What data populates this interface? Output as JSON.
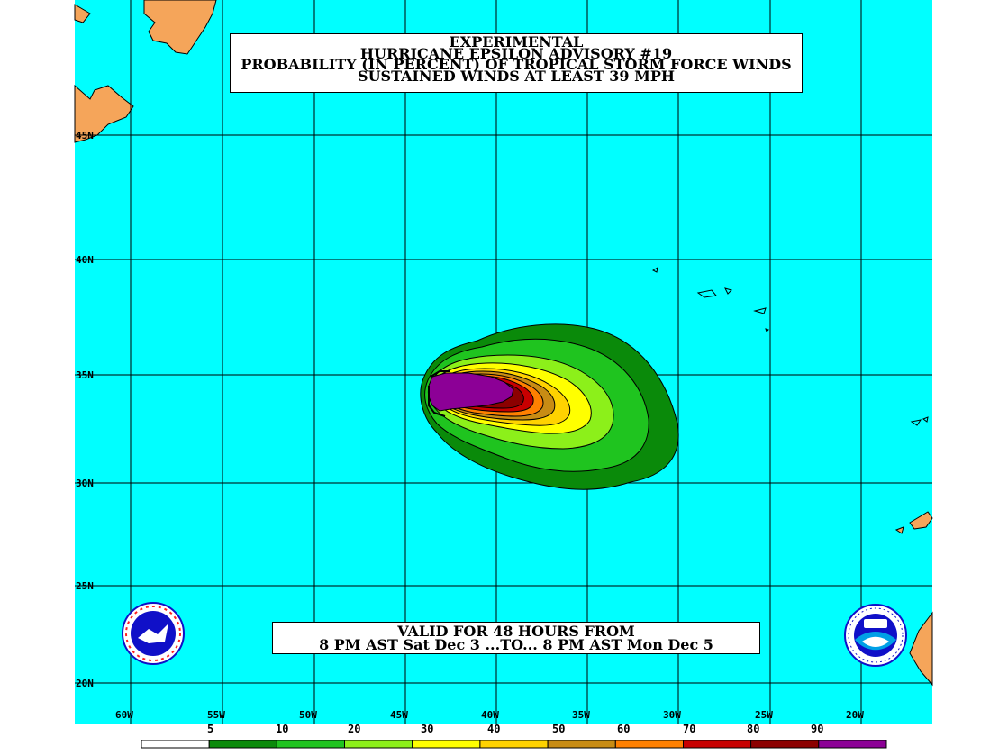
{
  "title": {
    "line1": "EXPERIMENTAL",
    "line2": "HURRICANE EPSILON ADVISORY #19",
    "line3": "PROBABILITY (IN PERCENT) OF TROPICAL STORM FORCE WINDS",
    "line4": "SUSTAINED WINDS AT LEAST 39 MPH"
  },
  "validity": {
    "line1": "VALID FOR 48 HOURS FROM",
    "line2": "8 PM AST Sat Dec 3 ...TO... 8 PM AST Mon Dec 5"
  },
  "latitude_labels": [
    "45N",
    "40N",
    "35N",
    "30N",
    "25N",
    "20N"
  ],
  "longitude_labels": [
    "60W",
    "55W",
    "50W",
    "45W",
    "40W",
    "35W",
    "30W",
    "25W",
    "20W"
  ],
  "legend": {
    "thresholds": [
      "5",
      "10",
      "20",
      "30",
      "40",
      "50",
      "60",
      "70",
      "80",
      "90"
    ],
    "colors": [
      "#ffffff",
      "#0a8a0a",
      "#1fc41f",
      "#8cf01a",
      "#ffff00",
      "#ffd200",
      "#c88c14",
      "#ff8000",
      "#c80000",
      "#8c0000",
      "#8c0096"
    ]
  },
  "colors": {
    "ocean": "#00ffff",
    "land": "#f5a55a",
    "grid": "#000000"
  },
  "logos": {
    "left": "nws-logo",
    "right": "noaa-logo"
  }
}
